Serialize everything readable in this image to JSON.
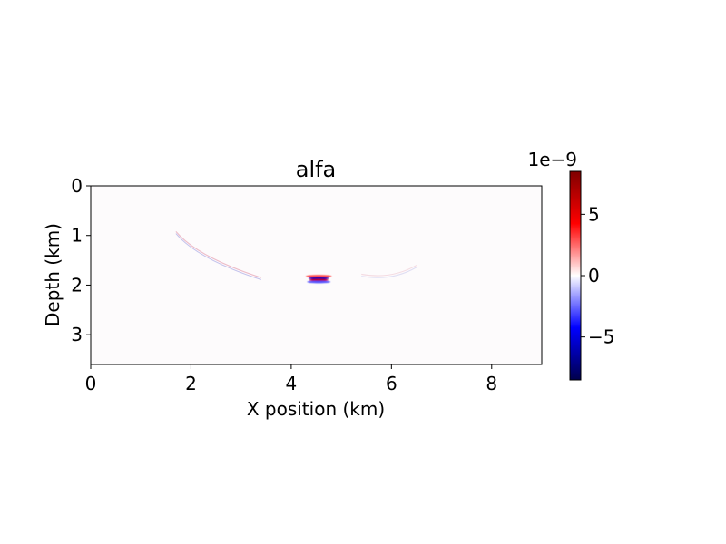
{
  "chart_data": {
    "type": "heatmap",
    "title": "alfa",
    "xlabel": "X position (km)",
    "ylabel": "Depth (km)",
    "xlim": [
      0,
      9
    ],
    "ylim": [
      3.6,
      0
    ],
    "y_inverted": true,
    "xticks": [
      0,
      2,
      4,
      6,
      8
    ],
    "xtick_labels": [
      "0",
      "2",
      "4",
      "6",
      "8"
    ],
    "yticks": [
      0,
      1,
      2,
      3
    ],
    "ytick_labels": [
      "0",
      "1",
      "2",
      "3"
    ],
    "grid": false,
    "colormap": "seismic",
    "colormap_colors": [
      "#00004c",
      "#0000ff",
      "#ffffff",
      "#ff0000",
      "#7f0000"
    ],
    "colorbar": {
      "vmin": -8.5,
      "vmax": 8.5,
      "ticks": [
        -5,
        0,
        5
      ],
      "tick_labels": [
        "−5",
        "0",
        "5"
      ],
      "offset_label": "1e−9"
    },
    "features": [
      {
        "kind": "dipole_blob",
        "x": 4.55,
        "depth": 1.88,
        "width_km": 0.55,
        "peak": 8.5
      },
      {
        "kind": "arc",
        "x_start": 1.7,
        "x_end": 3.4,
        "depth_start": 0.92,
        "depth_end": 1.85,
        "peak": 2.5
      },
      {
        "kind": "arc",
        "x_start": 5.4,
        "x_end": 6.5,
        "depth_start": 1.78,
        "depth_end": 1.6,
        "peak": 0.8
      }
    ]
  }
}
